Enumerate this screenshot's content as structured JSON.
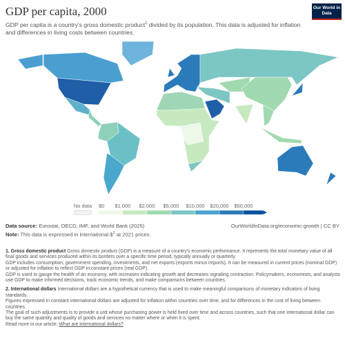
{
  "header": {
    "title": "GDP per capita, 2000",
    "subtitle": "GDP per capita is a country's gross domestic product",
    "subtitle_sup": "1",
    "subtitle_rest": "divided by its population. This data is adjusted for inflation and differences in living costs between countries.",
    "logo": "Our World in Data"
  },
  "legend": {
    "no_data": "No data",
    "labels": [
      "$0",
      "$1,000",
      "$2,000",
      "$5,000",
      "$10,000",
      "$20,000",
      "$50,000"
    ]
  },
  "footer": {
    "source_label": "Data source:",
    "source": "Eurostat, OECD, IMF, and World Bank (2025)",
    "url": "OurWorldInData.org/economic-growth | CC BY",
    "note_label": "Note:",
    "note": "This data is expressed in international-$",
    "note_sup": "2",
    "note_rest": "at 2021 prices."
  },
  "footnotes": [
    {
      "title": "1. Gross domestic product",
      "paragraphs": [
        "Gross domestic product (GDP) is a measure of a country's economic performance. It represents the total monetary value of all final goods and services produced within its borders over a specific time period, typically annually or quarterly.",
        "GDP includes consumption, government spending, investments, and net exports (exports minus imports). It can be measured in current prices (nominal GDP) or adjusted for inflation to reflect GDP in constant prices (real GDP).",
        "GDP is used to gauge the health of an economy, with increases indicating growth and decreases signaling contraction. Policymakers, economists, and analysts use GDP to make informed decisions, track economic trends, and make comparisons between countries."
      ]
    },
    {
      "title": "2. International dollars",
      "paragraphs": [
        "International dollars are a hypothetical currency that is used to make meaningful comparisons of monetary indicators of living standards.",
        "Figures expressed in constant international dollars are adjusted for inflation within countries over time, and for differences in the cost of living between countries.",
        "The goal of such adjustments is to provide a unit whose purchasing power is held fixed over time and across countries, such that one international dollar can buy the same quantity and quality of goods and services no matter where or when it is spent."
      ],
      "read_more": "Read more in our article:",
      "link": "What are international dollars?"
    }
  ]
}
